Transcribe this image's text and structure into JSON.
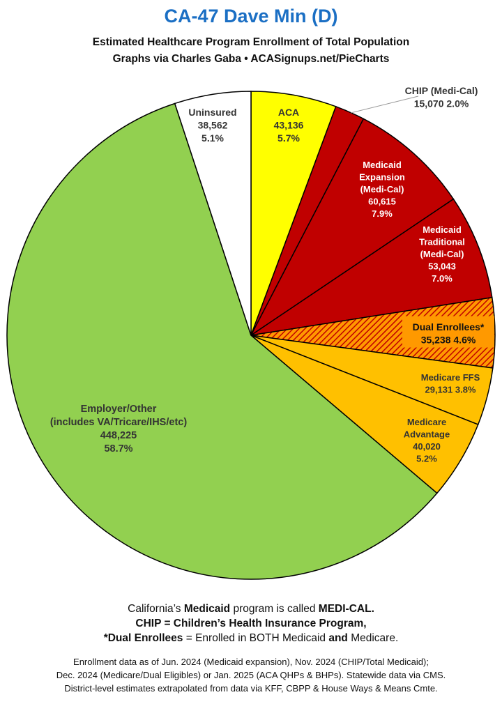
{
  "header": {
    "title": "CA-47 Dave Min (D)",
    "subtitle1": "Estimated Healthcare Program Enrollment of Total Population",
    "subtitle2": "Graphs via Charles Gaba  •  ACASignups.net/PieCharts"
  },
  "chart_data": {
    "type": "pie",
    "slices": [
      {
        "name": "ACA",
        "value": 43136,
        "percent": 5.7,
        "color": "#ffff00",
        "labels": [
          "ACA",
          "43,136",
          "5.7%"
        ],
        "label_color": "#333333"
      },
      {
        "name": "CHIP (Medi-Cal)",
        "value": 15070,
        "percent": 2.0,
        "color": "#c00000",
        "labels": [
          "CHIP (Medi-Cal)",
          "15,070 2.0%"
        ],
        "label_color": "#333333"
      },
      {
        "name": "Medicaid Expansion (Medi-Cal)",
        "value": 60615,
        "percent": 7.9,
        "color": "#c00000",
        "labels": [
          "Medicaid",
          "Expansion",
          "(Medi-Cal)",
          "60,615",
          "7.9%"
        ],
        "label_color": "#ffffff"
      },
      {
        "name": "Medicaid Traditional (Medi-Cal)",
        "value": 53043,
        "percent": 7.0,
        "color": "#c00000",
        "labels": [
          "Medicaid",
          "Traditional",
          "(Medi-Cal)",
          "53,043",
          "7.0%"
        ],
        "label_color": "#ffffff"
      },
      {
        "name": "Dual Enrollees*",
        "value": 35238,
        "percent": 4.6,
        "color": "#ff9900",
        "hatch": "#c00000",
        "labels": [
          "Dual Enrollees*",
          "35,238 4.6%"
        ],
        "label_color": "#111111"
      },
      {
        "name": "Medicare FFS",
        "value": 29131,
        "percent": 3.8,
        "color": "#ffc000",
        "labels": [
          "Medicare FFS",
          "29,131 3.8%"
        ],
        "label_color": "#333333"
      },
      {
        "name": "Medicare Advantage",
        "value": 40020,
        "percent": 5.2,
        "color": "#ffc000",
        "labels": [
          "Medicare",
          "Advantage",
          "40,020",
          "5.2%"
        ],
        "label_color": "#333333"
      },
      {
        "name": "Employer/Other (includes VA/Tricare/IHS/etc)",
        "value": 448225,
        "percent": 58.7,
        "color": "#92d050",
        "labels": [
          "Employer/Other",
          "(includes VA/Tricare/IHS/etc)",
          "448,225",
          "58.7%"
        ],
        "label_color": "#333333"
      },
      {
        "name": "Uninsured",
        "value": 38562,
        "percent": 5.1,
        "color": "#ffffff",
        "labels": [
          "Uninsured",
          "38,562",
          "5.1%"
        ],
        "label_color": "#333333"
      }
    ]
  },
  "notes": {
    "line1_a": "California’s ",
    "line1_b": "Medicaid",
    "line1_c": " program is called ",
    "line1_d": "MEDI-CAL.",
    "line2": "CHIP = Children’s Health Insurance Program,",
    "line3_a": "*Dual Enrollees",
    "line3_b": " = Enrolled in BOTH Medicaid ",
    "line3_c": "and",
    "line3_d": " Medicare."
  },
  "footer": {
    "line1": "Enrollment data as of Jun. 2024 (Medicaid expansion), Nov. 2024 (CHIP/Total Medicaid);",
    "line2": "Dec. 2024 (Medicare/Dual Eligibles) or Jan. 2025 (ACA QHPs & BHPs). Statewide data via CMS.",
    "line3": "District-level estimates extrapolated from data via KFF, CBPP & House Ways & Means Cmte."
  }
}
